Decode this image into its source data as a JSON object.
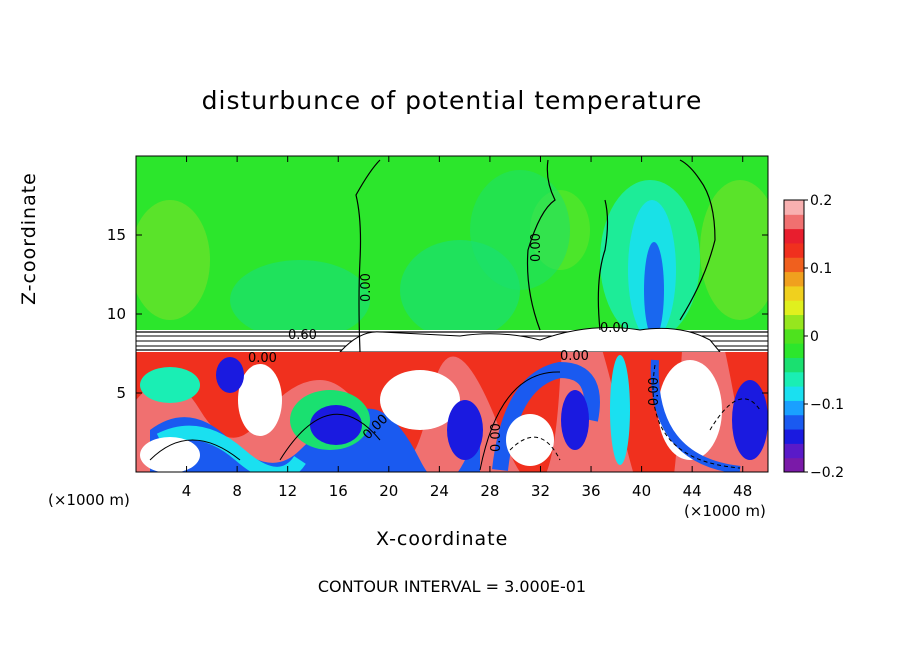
{
  "chart_data": {
    "type": "heatmap",
    "title": "disturbunce of potential temperature",
    "xlabel": "X-coordinate",
    "ylabel": "Z-coordinate",
    "x_unit_label": "(×1000 m)",
    "z_unit_label": "(×1000 m)",
    "xlim": [
      0,
      50
    ],
    "ylim": [
      0,
      20
    ],
    "x_ticks": [
      4,
      8,
      12,
      16,
      20,
      24,
      28,
      32,
      36,
      40,
      44,
      48
    ],
    "y_ticks": [
      5,
      10,
      15
    ],
    "colorbar": {
      "range": [
        -0.2,
        0.2
      ],
      "ticks": [
        "0.2",
        "0.1",
        "0",
        "−0.1",
        "−0.2"
      ],
      "colors": [
        "#7a1aa8",
        "#5a1ac8",
        "#1a1ae0",
        "#1a5af0",
        "#1aa0ff",
        "#1ae0f0",
        "#1aeeb4",
        "#1ae070",
        "#2ce62c",
        "#4ee21e",
        "#96e61e",
        "#e0f01e",
        "#f0d01e",
        "#f0a01e",
        "#f0601e",
        "#f0301e",
        "#e81e2e",
        "#f07070",
        "#f8b0b0"
      ]
    },
    "contour_labels": [
      "0.60",
      "0.00",
      "0.00",
      "0.00",
      "0.00",
      "0.00",
      "0.00",
      "0.00",
      "0.00"
    ],
    "footnote": "CONTOUR INTERVAL = 3.000E-01"
  }
}
